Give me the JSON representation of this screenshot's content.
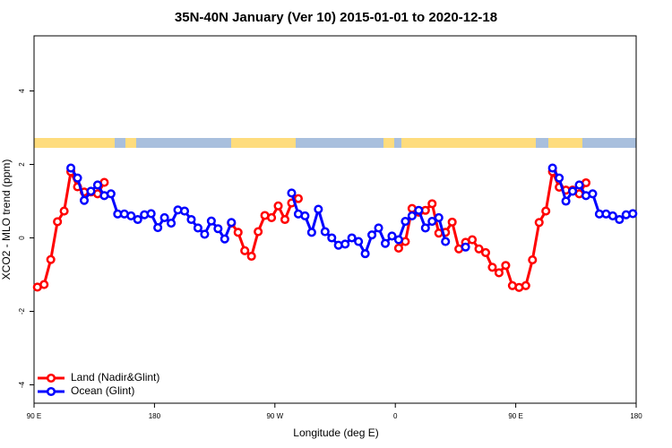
{
  "chart_data": {
    "type": "line",
    "title": "35N-40N January (Ver 10)   2015-01-01 to 2020-12-18",
    "xlabel": "Longitude (deg E)",
    "ylabel": "XCO2 - MLO trend (ppm)",
    "x": [
      92.5,
      97.5,
      102.5,
      107.5,
      112.5,
      117.5,
      122.5,
      127.5,
      132.5,
      137.5,
      142.5,
      147.5,
      152.5,
      157.5,
      162.5,
      167.5,
      172.5,
      177.5,
      182.5,
      187.5,
      192.5,
      197.5,
      202.5,
      207.5,
      212.5,
      217.5,
      222.5,
      227.5,
      232.5,
      237.5,
      242.5,
      247.5,
      252.5,
      257.5,
      262.5,
      267.5,
      272.5,
      277.5,
      282.5,
      287.5,
      292.5,
      297.5,
      302.5,
      307.5,
      312.5,
      317.5,
      322.5,
      327.5,
      332.5,
      337.5,
      342.5,
      347.5,
      352.5,
      357.5,
      362.5,
      367.5,
      372.5,
      377.5,
      382.5,
      387.5,
      392.5,
      397.5,
      402.5,
      407.5,
      412.5,
      417.5,
      422.5,
      427.5,
      432.5,
      437.5,
      442.5,
      447.5,
      452.5,
      457.5,
      462.5,
      467.5,
      472.5,
      477.5,
      482.5,
      487.5,
      492.5,
      497.5,
      502.5,
      507.5,
      512.5,
      517.5,
      522.5,
      527.5,
      532.5,
      537.5
    ],
    "series": [
      {
        "name": "Land (Nadir&Glint)",
        "color": "#ff0000",
        "values": [
          -1.34,
          -1.27,
          -0.59,
          0.44,
          0.73,
          1.8,
          1.39,
          1.25,
          1.25,
          1.2,
          1.51,
          null,
          null,
          null,
          null,
          null,
          null,
          null,
          null,
          null,
          null,
          null,
          null,
          null,
          null,
          null,
          null,
          null,
          null,
          0.4,
          0.15,
          -0.35,
          -0.5,
          0.17,
          0.61,
          0.55,
          0.87,
          0.5,
          0.95,
          1.07,
          null,
          null,
          null,
          null,
          null,
          null,
          null,
          null,
          null,
          null,
          null,
          null,
          null,
          null,
          -0.28,
          -0.1,
          0.8,
          0.7,
          0.75,
          0.93,
          0.13,
          0.15,
          0.43,
          -0.3,
          -0.12,
          -0.05,
          -0.3,
          -0.4,
          -0.8,
          -0.95,
          -0.75,
          -1.3,
          -1.35,
          -1.3,
          -0.6,
          0.42,
          0.73,
          1.8,
          1.38,
          1.3,
          1.3,
          1.2,
          1.5,
          null,
          null,
          null,
          null,
          null,
          null,
          null
        ]
      },
      {
        "name": "Ocean (Glint)",
        "color": "#0000ff",
        "values": [
          null,
          null,
          null,
          null,
          null,
          1.9,
          1.63,
          1.02,
          1.27,
          1.44,
          1.15,
          1.2,
          0.65,
          0.65,
          0.6,
          0.5,
          0.63,
          0.66,
          0.28,
          0.55,
          0.4,
          0.76,
          0.73,
          0.5,
          0.27,
          0.1,
          0.46,
          0.25,
          -0.03,
          0.42,
          null,
          null,
          null,
          null,
          null,
          null,
          null,
          null,
          1.22,
          0.65,
          0.6,
          0.15,
          0.78,
          0.17,
          0.0,
          -0.2,
          -0.17,
          0.0,
          -0.1,
          -0.43,
          0.08,
          0.27,
          -0.15,
          0.05,
          -0.05,
          0.45,
          0.6,
          0.75,
          0.27,
          0.45,
          0.55,
          -0.1,
          null,
          null,
          -0.25,
          null,
          null,
          null,
          null,
          null,
          null,
          null,
          null,
          null,
          null,
          null,
          null,
          1.9,
          1.63,
          1.0,
          1.27,
          1.44,
          1.15,
          1.2,
          0.65,
          0.65,
          0.6,
          0.5,
          0.63,
          0.66
        ]
      }
    ],
    "xlim": [
      90,
      540
    ],
    "xticks": [
      {
        "value": 90,
        "label": "90 E"
      },
      180,
      {
        "value": 270,
        "label": "90 W"
      },
      {
        "value": 360,
        "label": "0"
      },
      {
        "value": 450,
        "label": "90 E"
      },
      {
        "value": 540,
        "label": "180"
      }
    ],
    "ylim": [
      -4.5,
      5.5
    ],
    "yticks": [
      -4,
      -2,
      0,
      2,
      4
    ],
    "legend": "bottom-left"
  }
}
